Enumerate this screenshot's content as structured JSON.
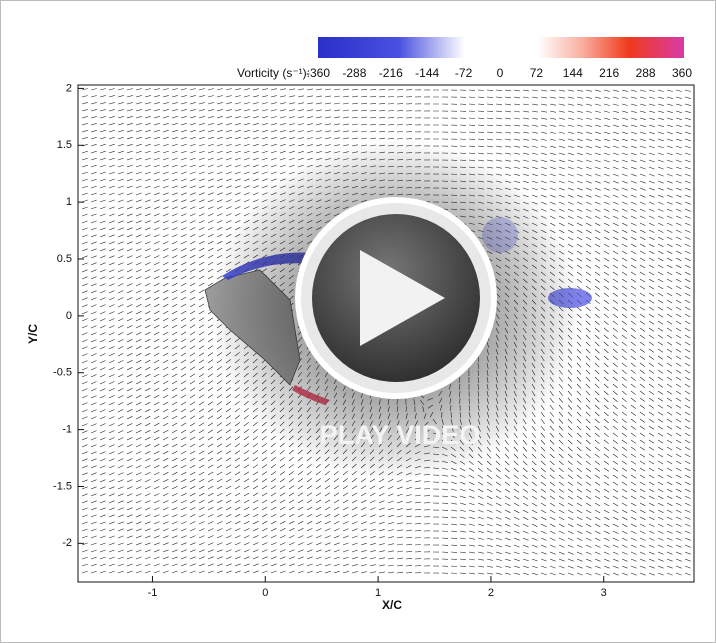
{
  "colorbar": {
    "label": "Vorticity (s⁻¹):",
    "ticks": [
      -360,
      -288,
      -216,
      -144,
      -72,
      0,
      72,
      144,
      216,
      288,
      360
    ]
  },
  "plot": {
    "xlabel": "X/C",
    "ylabel": "Y/C",
    "xlim": [
      -1.66,
      3.8
    ],
    "ylim": [
      -2.34,
      2.03
    ],
    "xticks": [
      -1,
      0,
      1,
      2,
      3
    ],
    "yticks": [
      2,
      1.5,
      1,
      0.5,
      0,
      -0.5,
      -1,
      -1.5,
      -2
    ]
  },
  "overlay": {
    "button_text": "PLAY VIDEO"
  }
}
